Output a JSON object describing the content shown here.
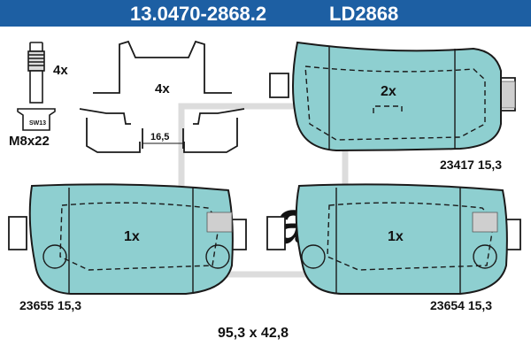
{
  "header": {
    "part_number": "13.0470-2868.2",
    "ld_code": "LD2868",
    "background_color": "#1d5fa3",
    "text_color": "#ffffff"
  },
  "colors": {
    "pad_fill": "#8ecfd0",
    "line": "#1a1a1a",
    "watermark": "#dcdcdc"
  },
  "bolt": {
    "quantity_label": "4x",
    "size_label": "M8x22",
    "head_label": "SW13"
  },
  "clip": {
    "quantity_label": "4x",
    "dimension_label": "16,5"
  },
  "pads": {
    "top": {
      "quantity_label": "2x",
      "spec": "23417 15,3"
    },
    "bottom_left": {
      "quantity_label": "1x",
      "spec": "23655 15,3"
    },
    "bottom_right": {
      "quantity_label": "1x",
      "spec": "23654 15,3"
    }
  },
  "dimensions": "95,3 x 42,8"
}
